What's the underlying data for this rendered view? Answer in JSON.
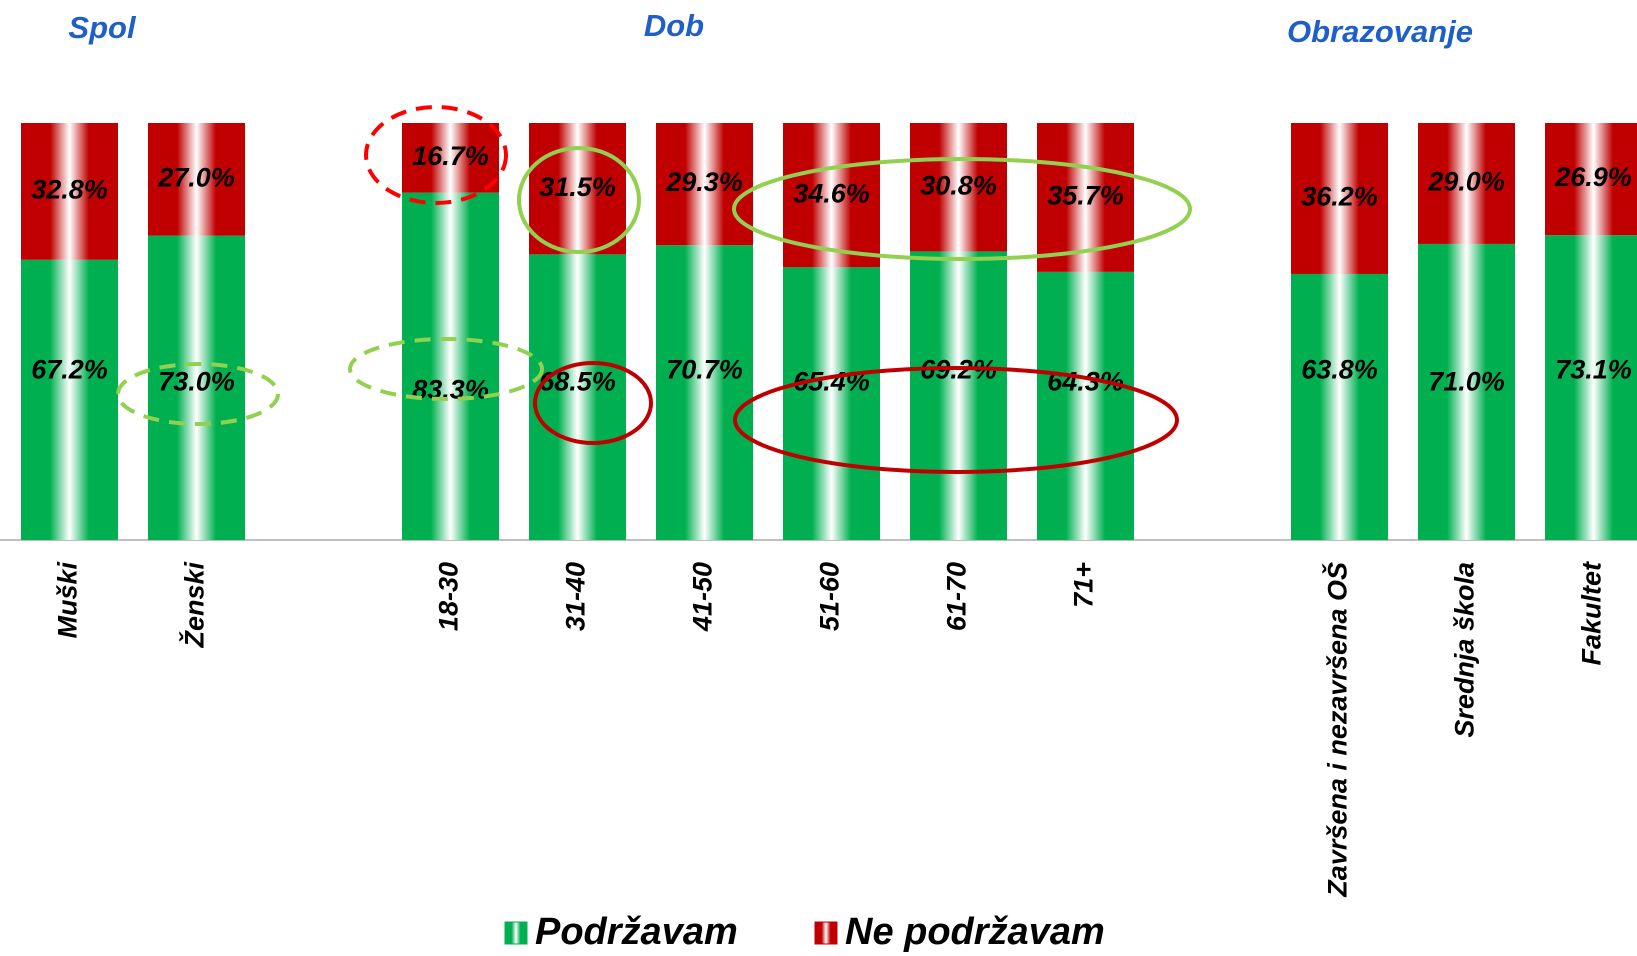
{
  "chart_data": {
    "type": "bar",
    "stacked": true,
    "series": [
      {
        "name": "Podržavam",
        "color": "#00b050"
      },
      {
        "name": "Ne podržavam",
        "color": "#c00000"
      }
    ],
    "groups": [
      {
        "title": "Spol",
        "categories": [
          "Muški",
          "Ženski"
        ],
        "series": [
          {
            "values": [
              67.2,
              73.0
            ],
            "value_labels": [
              "67.2%",
              "73.0%"
            ]
          },
          {
            "values": [
              32.8,
              27.0
            ],
            "value_labels": [
              "32.8%",
              "27.0%"
            ]
          }
        ]
      },
      {
        "title": "Dob",
        "categories": [
          "18-30",
          "31-40",
          "41-50",
          "51-60",
          "61-70",
          "71+"
        ],
        "series": [
          {
            "values": [
              83.3,
              68.5,
              70.7,
              65.4,
              69.2,
              64.3
            ],
            "value_labels": [
              "83.3%",
              "68.5%",
              "70.7%",
              "65.4%",
              "69.2%",
              "64.3%"
            ]
          },
          {
            "values": [
              16.7,
              31.5,
              29.3,
              34.6,
              30.8,
              35.7
            ],
            "value_labels": [
              "16.7%",
              "31.5%",
              "29.3%",
              "34.6%",
              "30.8%",
              "35.7%"
            ]
          }
        ]
      },
      {
        "title": "Obrazovanje",
        "categories": [
          "Završena i nezavršena OŠ",
          "Srednja škola",
          "Fakultet"
        ],
        "series": [
          {
            "values": [
              63.8,
              71.0,
              73.1
            ],
            "value_labels": [
              "63.8%",
              "71.0%",
              "73.1%"
            ]
          },
          {
            "values": [
              36.2,
              29.0,
              26.9
            ],
            "value_labels": [
              "36.2%",
              "29.0%",
              "26.9%"
            ]
          }
        ]
      }
    ]
  }
}
